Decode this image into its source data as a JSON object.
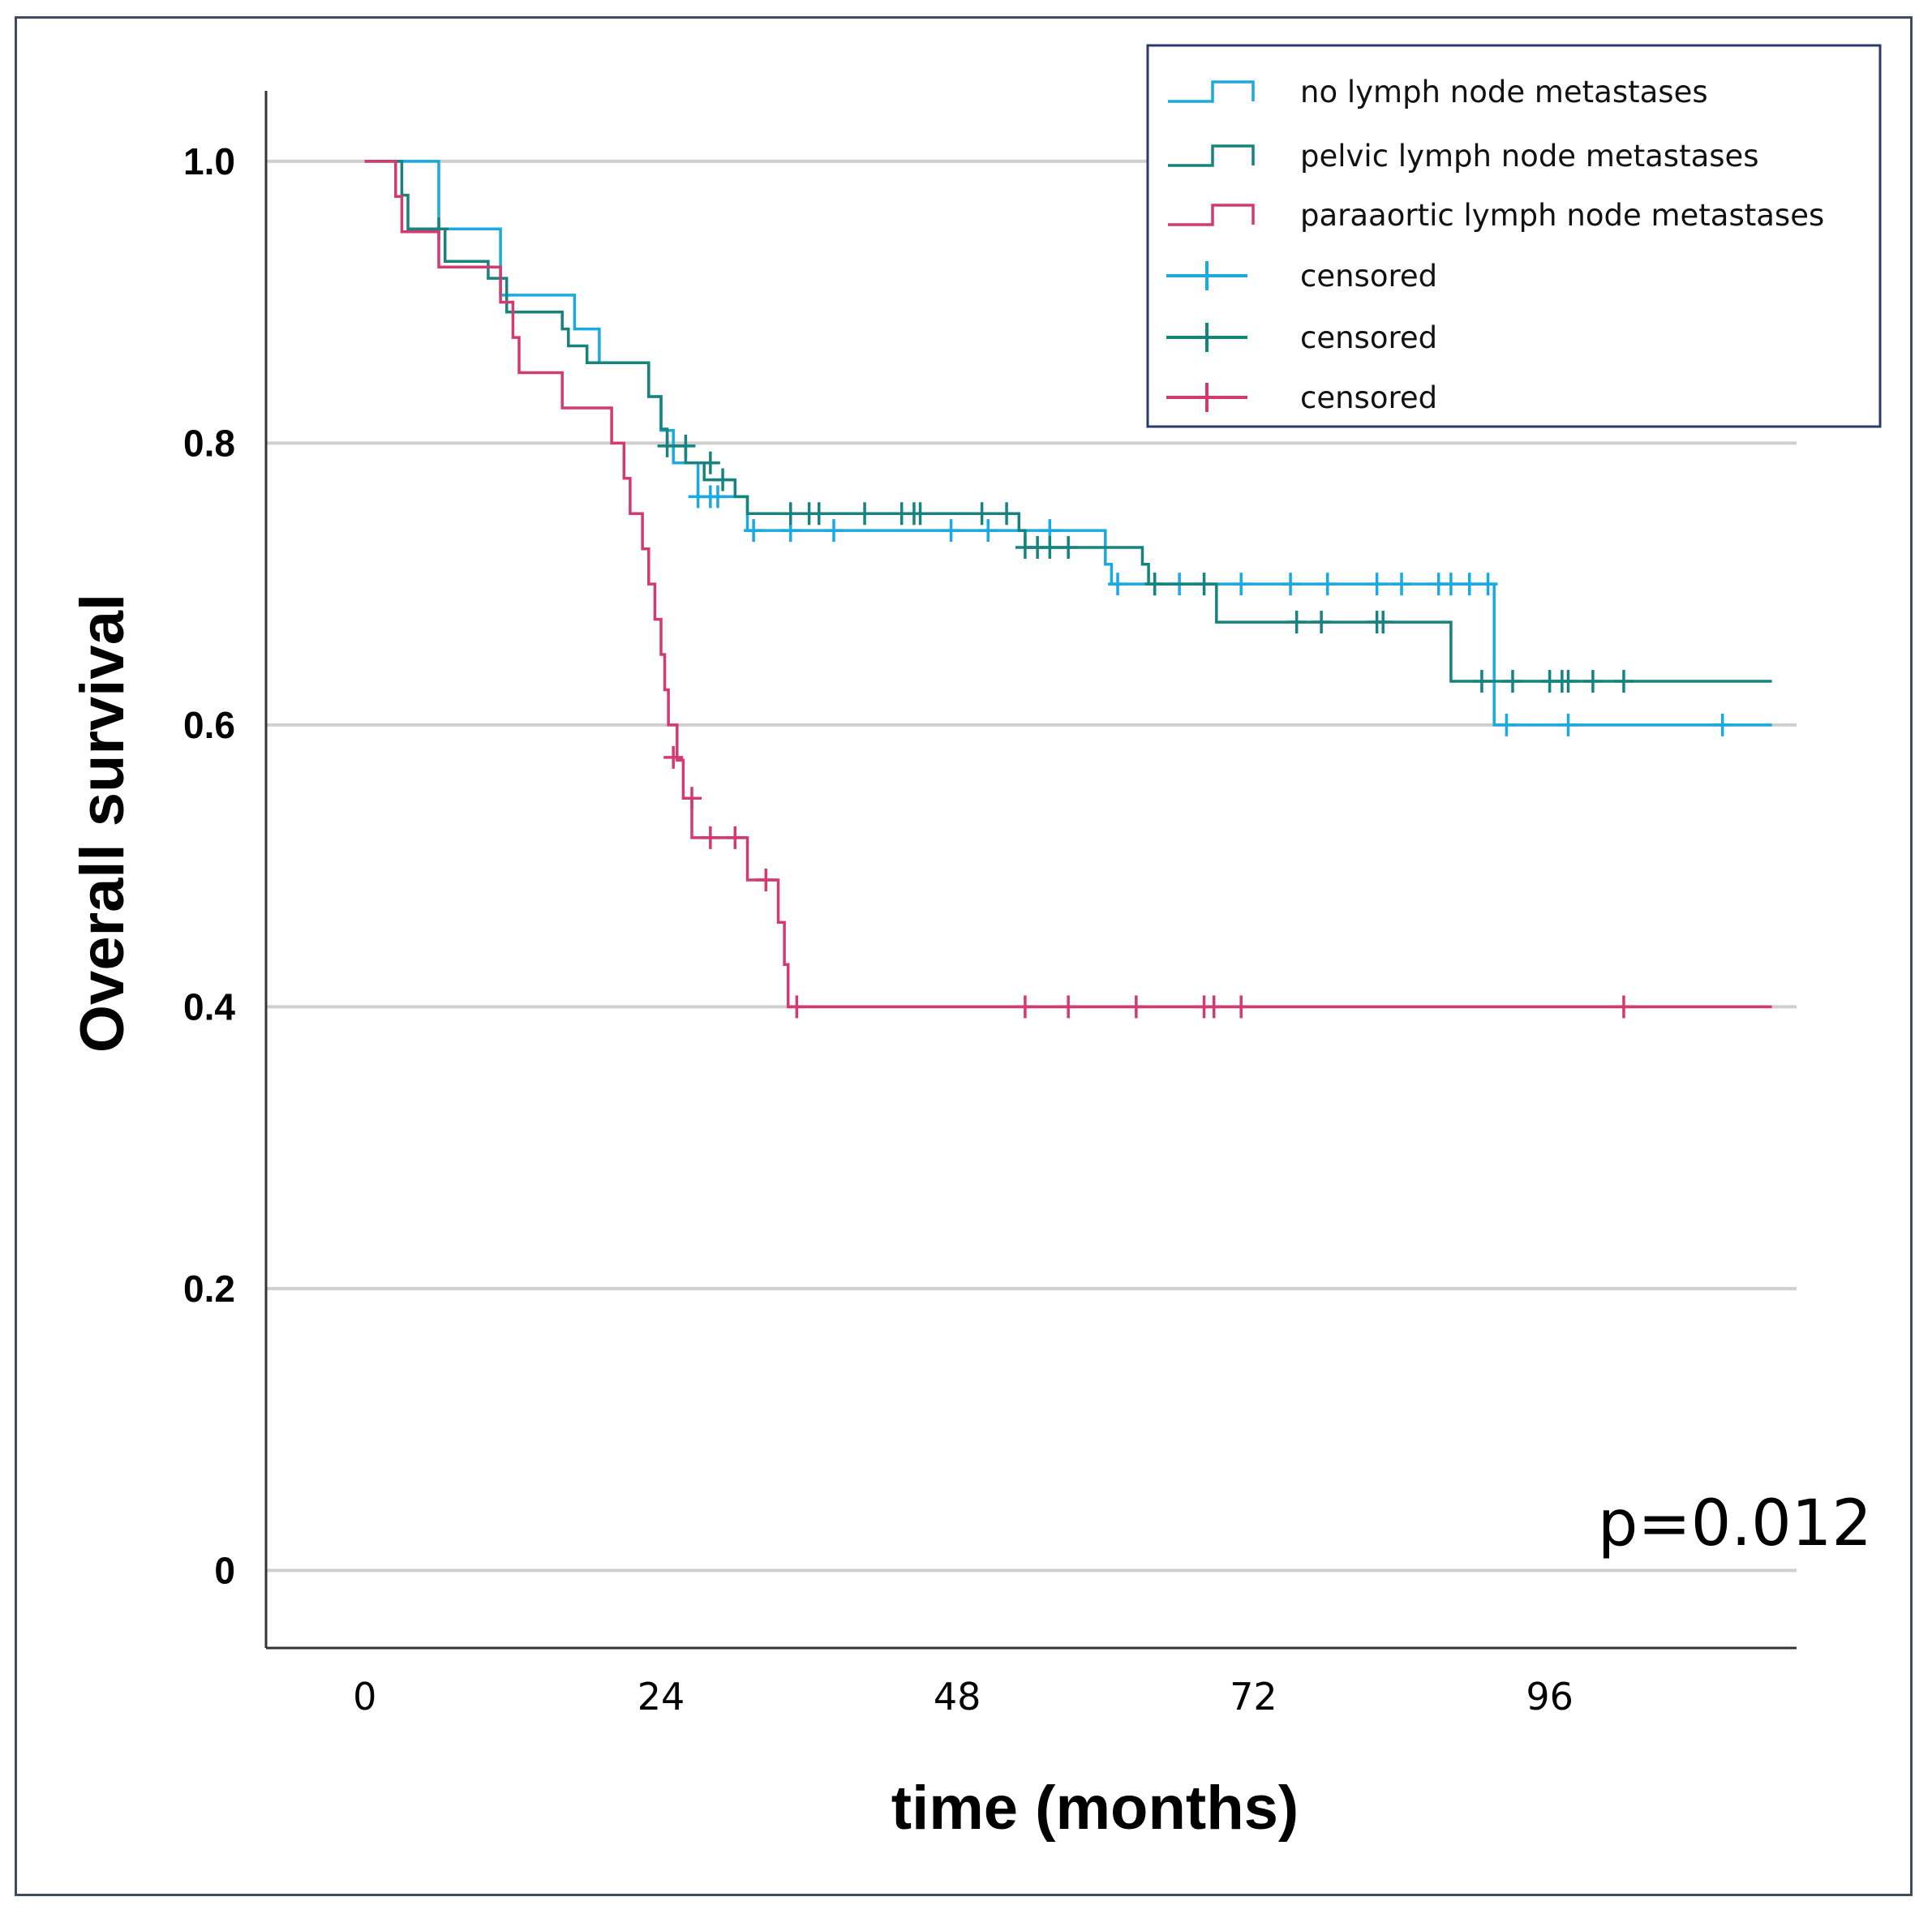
{
  "chart_data": {
    "type": "line",
    "subtype": "kaplan-meier",
    "title": "",
    "xlabel": "time (months)",
    "ylabel": "Overall survival",
    "xlim": [
      -8,
      116
    ],
    "ylim": [
      -0.055,
      1.05
    ],
    "xticks": [
      "0",
      "24",
      "48",
      "72",
      "96"
    ],
    "xtick_values": [
      0,
      24,
      48,
      72,
      96
    ],
    "yticks": [
      "0",
      "0.2",
      "0.4",
      "0.6",
      "0.8",
      "1.0"
    ],
    "ytick_values": [
      0,
      0.2,
      0.4,
      0.6,
      0.8,
      1.0
    ],
    "grid": "horizontal",
    "legend_position": "top-right",
    "annotation": "p=0.012",
    "legend": [
      {
        "label": "no lymph node metastases",
        "kind": "line",
        "color": "#1aa9e0"
      },
      {
        "label": "pelvic lymph node metastases",
        "kind": "line",
        "color": "#17837e"
      },
      {
        "label": "paraaortic lymph node metastases",
        "kind": "line",
        "color": "#d23a70"
      },
      {
        "label": "censored",
        "kind": "censor",
        "color": "#1aa9e0"
      },
      {
        "label": "censored",
        "kind": "censor",
        "color": "#17837e"
      },
      {
        "label": "censored",
        "kind": "censor",
        "color": "#d23a70"
      }
    ],
    "series": [
      {
        "name": "no lymph node metastases",
        "color": "#1aa9e0",
        "steps": [
          [
            0,
            1.0
          ],
          [
            6,
            0.952
          ],
          [
            11,
            0.905
          ],
          [
            17,
            0.881
          ],
          [
            19,
            0.857
          ],
          [
            23,
            0.833
          ],
          [
            24,
            0.809
          ],
          [
            25,
            0.786
          ],
          [
            27,
            0.762
          ],
          [
            31,
            0.738
          ],
          [
            55,
            0.738
          ],
          [
            60,
            0.714
          ],
          [
            60.5,
            0.7
          ],
          [
            91,
            0.7
          ],
          [
            91.5,
            0.6
          ],
          [
            114,
            0.6
          ]
        ],
        "censored": [
          [
            27,
            0.762
          ],
          [
            28,
            0.762
          ],
          [
            28.6,
            0.762
          ],
          [
            31.5,
            0.738
          ],
          [
            34.5,
            0.738
          ],
          [
            38,
            0.738
          ],
          [
            47.5,
            0.738
          ],
          [
            50.5,
            0.738
          ],
          [
            55.5,
            0.738
          ],
          [
            61,
            0.7
          ],
          [
            64,
            0.7
          ],
          [
            66,
            0.7
          ],
          [
            71,
            0.7
          ],
          [
            75,
            0.7
          ],
          [
            78,
            0.7
          ],
          [
            82,
            0.7
          ],
          [
            84,
            0.7
          ],
          [
            87,
            0.7
          ],
          [
            88,
            0.7
          ],
          [
            89.5,
            0.7
          ],
          [
            91,
            0.7
          ],
          [
            92.5,
            0.6
          ],
          [
            97.5,
            0.6
          ],
          [
            110,
            0.6
          ]
        ]
      },
      {
        "name": "pelvic lymph node metastases",
        "color": "#17837e",
        "steps": [
          [
            0,
            1.0
          ],
          [
            3,
            0.976
          ],
          [
            3.5,
            0.952
          ],
          [
            6.5,
            0.929
          ],
          [
            10,
            0.917
          ],
          [
            11.5,
            0.893
          ],
          [
            16,
            0.881
          ],
          [
            16.5,
            0.869
          ],
          [
            18,
            0.857
          ],
          [
            23,
            0.833
          ],
          [
            24,
            0.81
          ],
          [
            24.5,
            0.798
          ],
          [
            26,
            0.786
          ],
          [
            27.5,
            0.774
          ],
          [
            30,
            0.762
          ],
          [
            31,
            0.75
          ],
          [
            52.5,
            0.75
          ],
          [
            53,
            0.738
          ],
          [
            53.5,
            0.726
          ],
          [
            63,
            0.714
          ],
          [
            63.5,
            0.7
          ],
          [
            68.5,
            0.7
          ],
          [
            69,
            0.673
          ],
          [
            87.5,
            0.673
          ],
          [
            88,
            0.631
          ],
          [
            114,
            0.631
          ]
        ],
        "censored": [
          [
            6,
            0.952
          ],
          [
            24.5,
            0.798
          ],
          [
            26,
            0.798
          ],
          [
            28,
            0.786
          ],
          [
            29,
            0.774
          ],
          [
            34.5,
            0.75
          ],
          [
            36,
            0.75
          ],
          [
            36.8,
            0.75
          ],
          [
            40.5,
            0.75
          ],
          [
            43.5,
            0.75
          ],
          [
            44.5,
            0.75
          ],
          [
            45,
            0.75
          ],
          [
            50,
            0.75
          ],
          [
            52,
            0.75
          ],
          [
            53.5,
            0.726
          ],
          [
            54.5,
            0.726
          ],
          [
            55.5,
            0.726
          ],
          [
            57,
            0.726
          ],
          [
            64,
            0.7
          ],
          [
            68,
            0.7
          ],
          [
            75.5,
            0.673
          ],
          [
            77.5,
            0.673
          ],
          [
            82,
            0.673
          ],
          [
            82.5,
            0.673
          ],
          [
            90.5,
            0.631
          ],
          [
            93,
            0.631
          ],
          [
            96,
            0.631
          ],
          [
            97,
            0.631
          ],
          [
            97.5,
            0.631
          ],
          [
            99.5,
            0.631
          ],
          [
            102,
            0.631
          ]
        ]
      },
      {
        "name": "paraaortic lymph node metastases",
        "color": "#d23a70",
        "steps": [
          [
            0,
            1.0
          ],
          [
            2.5,
            0.975
          ],
          [
            3,
            0.95
          ],
          [
            6,
            0.925
          ],
          [
            11,
            0.9
          ],
          [
            12,
            0.875
          ],
          [
            12.5,
            0.85
          ],
          [
            16,
            0.825
          ],
          [
            20,
            0.8
          ],
          [
            21,
            0.775
          ],
          [
            21.5,
            0.75
          ],
          [
            22.5,
            0.725
          ],
          [
            23,
            0.7
          ],
          [
            23.5,
            0.675
          ],
          [
            24,
            0.65
          ],
          [
            24.3,
            0.625
          ],
          [
            24.6,
            0.6
          ],
          [
            25.3,
            0.575
          ],
          [
            25.8,
            0.548
          ],
          [
            26.5,
            0.52
          ],
          [
            31,
            0.49
          ],
          [
            33.5,
            0.46
          ],
          [
            34,
            0.43
          ],
          [
            34.3,
            0.4
          ],
          [
            114,
            0.4
          ]
        ],
        "censored": [
          [
            25,
            0.577
          ],
          [
            26.5,
            0.548
          ],
          [
            28,
            0.52
          ],
          [
            30,
            0.52
          ],
          [
            32.5,
            0.49
          ],
          [
            35,
            0.4
          ],
          [
            53.5,
            0.4
          ],
          [
            57,
            0.4
          ],
          [
            62.5,
            0.4
          ],
          [
            68,
            0.4
          ],
          [
            68.8,
            0.4
          ],
          [
            71,
            0.4
          ],
          [
            102,
            0.4
          ]
        ]
      }
    ]
  }
}
